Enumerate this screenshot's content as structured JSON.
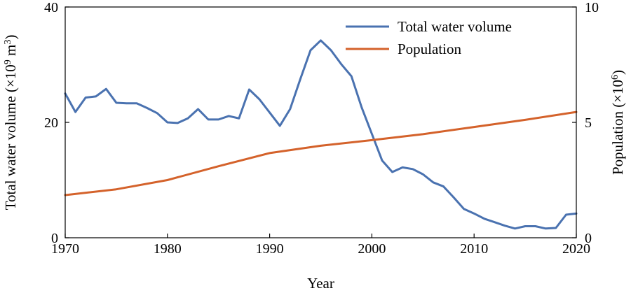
{
  "chart_data": {
    "type": "line",
    "xlabel": "Year",
    "ylabel_left": "Total water volume (×10",
    "ylabel_left_sup": "9",
    "ylabel_left_unit": " m",
    "ylabel_left_unit_sup": "3",
    "ylabel_left_close": ")",
    "ylabel_right": "Population (×10",
    "ylabel_right_sup": "6",
    "ylabel_right_close": ")",
    "xlim": [
      1970,
      2020
    ],
    "ylim_left": [
      0,
      40
    ],
    "ylim_right": [
      0,
      10
    ],
    "x_ticks": [
      "1970",
      "1980",
      "1990",
      "2000",
      "2010",
      "2020"
    ],
    "y_left_ticks": [
      "0",
      "20",
      "40"
    ],
    "y_right_ticks": [
      "0",
      "5",
      "10"
    ],
    "legend_position": "top-right",
    "grid": false,
    "series": [
      {
        "name": "Total water volume",
        "axis": "left",
        "color": "#4a72b0",
        "x": [
          1970,
          1971,
          1972,
          1973,
          1974,
          1975,
          1976,
          1977,
          1978,
          1979,
          1980,
          1981,
          1982,
          1983,
          1984,
          1985,
          1986,
          1987,
          1988,
          1989,
          1990,
          1991,
          1992,
          1993,
          1994,
          1995,
          1996,
          1997,
          1998,
          1999,
          2000,
          2001,
          2002,
          2003,
          2004,
          2005,
          2006,
          2007,
          2008,
          2009,
          2010,
          2011,
          2012,
          2013,
          2014,
          2015,
          2016,
          2017,
          2018,
          2019,
          2020
        ],
        "values": [
          25,
          21.8,
          24.3,
          24.5,
          25.8,
          23.4,
          23.3,
          23.3,
          22.5,
          21.6,
          20,
          19.9,
          20.7,
          22.3,
          20.5,
          20.5,
          21.1,
          20.7,
          25.7,
          24,
          21.7,
          19.4,
          22.3,
          27.5,
          32.5,
          34.2,
          32.5,
          30.1,
          28,
          22.6,
          18,
          13.4,
          11.4,
          12.2,
          11.9,
          11,
          9.6,
          8.9,
          7,
          5,
          4.2,
          3.3,
          2.7,
          2.1,
          1.6,
          2,
          2,
          1.6,
          1.7,
          4,
          4.2
        ]
      },
      {
        "name": "Population",
        "axis": "right",
        "color": "#d4622b",
        "x": [
          1970,
          1975,
          1980,
          1985,
          1990,
          1995,
          2000,
          2005,
          2010,
          2015,
          2020
        ],
        "values": [
          1.85,
          2.1,
          2.5,
          3.1,
          3.67,
          3.99,
          4.23,
          4.49,
          4.8,
          5.11,
          5.45
        ]
      }
    ]
  }
}
